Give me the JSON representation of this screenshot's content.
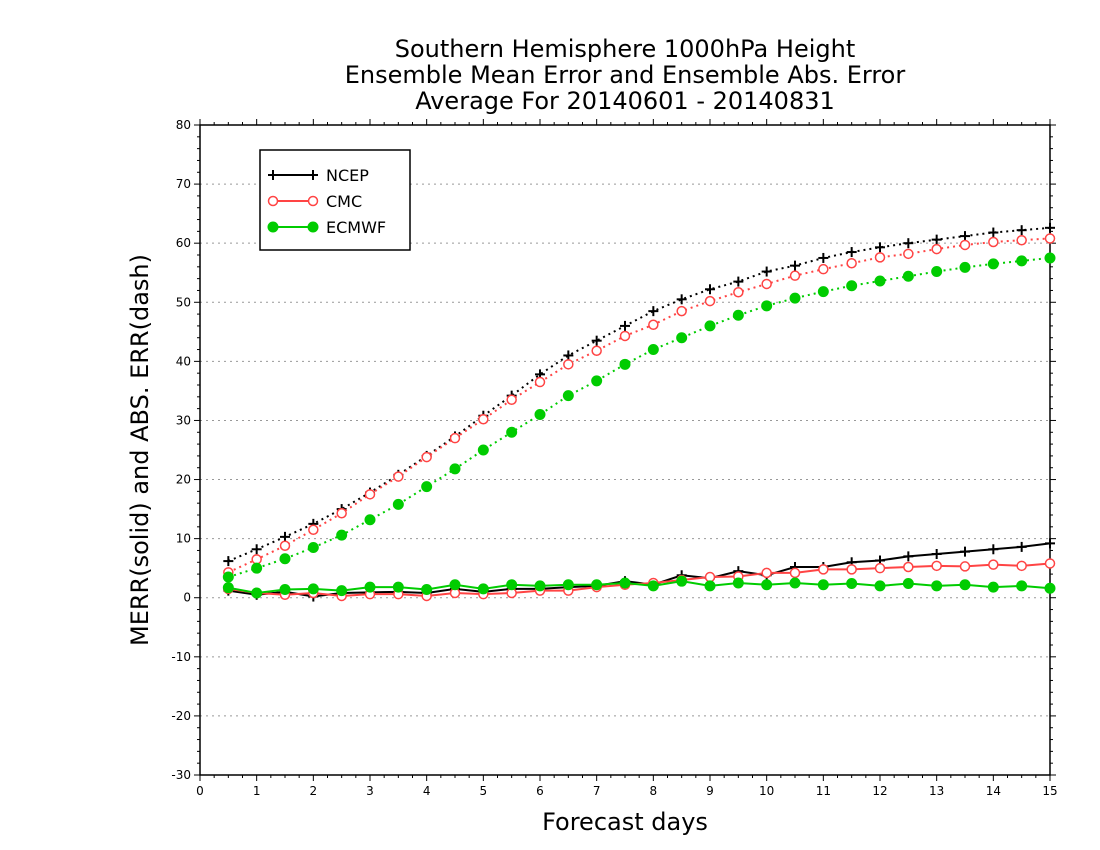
{
  "chart_data": {
    "type": "line",
    "title": [
      "Southern Hemisphere 1000hPa Height",
      "Ensemble Mean Error and Ensemble Abs. Error",
      "Average For 20140601 - 20140831"
    ],
    "xlabel": "Forecast days",
    "ylabel": "MERR(solid) and ABS. ERR(dash)",
    "xlim": [
      0,
      15
    ],
    "ylim": [
      -30,
      80
    ],
    "xticks": [
      0,
      1,
      2,
      3,
      4,
      5,
      6,
      7,
      8,
      9,
      10,
      11,
      12,
      13,
      14,
      15
    ],
    "yticks": [
      -30,
      -20,
      -10,
      0,
      10,
      20,
      30,
      40,
      50,
      60,
      70,
      80
    ],
    "grid": "horizontal dotted",
    "legend_position": "top-left",
    "x": [
      0.5,
      1,
      1.5,
      2,
      2.5,
      3,
      3.5,
      4,
      4.5,
      5,
      5.5,
      6,
      6.5,
      7,
      7.5,
      8,
      8.5,
      9,
      9.5,
      10,
      10.5,
      11,
      11.5,
      12,
      12.5,
      13,
      13.5,
      14,
      14.5,
      15
    ],
    "series": [
      {
        "name": "NCEP",
        "color": "#000000",
        "marker": "plus",
        "merr": [
          1.2,
          0.5,
          1.0,
          0.2,
          0.8,
          0.9,
          1.0,
          0.8,
          1.5,
          1.0,
          1.5,
          1.5,
          1.8,
          2.0,
          2.8,
          2.2,
          3.8,
          3.3,
          4.5,
          3.8,
          5.2,
          5.2,
          6.0,
          6.3,
          7.0,
          7.4,
          7.8,
          8.2,
          8.6,
          9.2
        ],
        "abs_err": [
          6.2,
          8.2,
          10.3,
          12.5,
          15.0,
          17.8,
          20.8,
          24.0,
          27.3,
          30.8,
          34.2,
          37.8,
          41.0,
          43.5,
          46.0,
          48.5,
          50.5,
          52.2,
          53.5,
          55.2,
          56.2,
          57.5,
          58.5,
          59.3,
          60.0,
          60.6,
          61.2,
          61.8,
          62.2,
          62.6
        ]
      },
      {
        "name": "CMC",
        "color": "#ff4444",
        "marker": "open-circle",
        "merr": [
          1.5,
          0.8,
          0.5,
          0.8,
          0.3,
          0.6,
          0.6,
          0.3,
          0.8,
          0.6,
          0.8,
          1.2,
          1.2,
          1.8,
          2.2,
          2.5,
          3.0,
          3.5,
          3.6,
          4.2,
          4.2,
          4.8,
          4.8,
          5.0,
          5.2,
          5.4,
          5.3,
          5.6,
          5.4,
          5.8
        ],
        "abs_err": [
          4.3,
          6.5,
          8.8,
          11.5,
          14.3,
          17.5,
          20.5,
          23.8,
          27.0,
          30.2,
          33.5,
          36.5,
          39.5,
          41.8,
          44.3,
          46.2,
          48.5,
          50.2,
          51.7,
          53.1,
          54.5,
          55.6,
          56.6,
          57.6,
          58.2,
          59.0,
          59.7,
          60.2,
          60.5,
          60.8
        ]
      },
      {
        "name": "ECMWF",
        "color": "#00cc00",
        "marker": "filled-circle",
        "merr": [
          1.7,
          0.8,
          1.4,
          1.5,
          1.2,
          1.8,
          1.8,
          1.4,
          2.2,
          1.5,
          2.2,
          2.0,
          2.2,
          2.2,
          2.5,
          2.0,
          2.8,
          2.0,
          2.5,
          2.2,
          2.5,
          2.2,
          2.4,
          2.0,
          2.4,
          2.0,
          2.2,
          1.8,
          2.0,
          1.6
        ],
        "abs_err": [
          3.5,
          5.0,
          6.6,
          8.5,
          10.6,
          13.2,
          15.8,
          18.8,
          21.8,
          25.0,
          28.0,
          31.0,
          34.2,
          36.7,
          39.5,
          42.0,
          44.0,
          46.0,
          47.8,
          49.4,
          50.7,
          51.8,
          52.8,
          53.6,
          54.4,
          55.2,
          55.9,
          56.5,
          57.0,
          57.5
        ]
      }
    ]
  }
}
